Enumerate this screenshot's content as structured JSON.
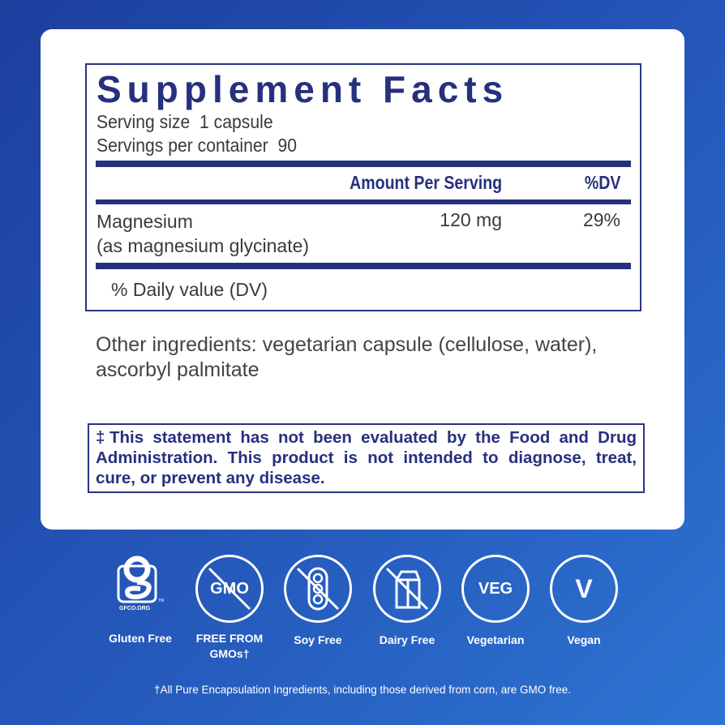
{
  "facts": {
    "title": "Supplement Facts",
    "serving_size": "Serving size  1 capsule",
    "servings_per_container": "Servings per container  90",
    "col_amount": "Amount Per Serving",
    "col_dv": "%DV",
    "nutrient": {
      "name": "Magnesium",
      "source": "(as magnesium glycinate)",
      "amount": "120 mg",
      "dv": "29%"
    },
    "dv_note": "% Daily value (DV)"
  },
  "other_ingredients": "Other ingredients: vegetarian capsule (cellulose, water), ascorbyl palmitate",
  "disclaimer": "‡This statement has not been evaluated by the Food and Drug Administration. This product is not intended to diagnose, treat, cure, or prevent any disease.",
  "badges": [
    {
      "label": "Gluten Free",
      "icon": "gfco-logo",
      "logo_text": "GFCO.ORG"
    },
    {
      "label": "FREE FROM GMOs†",
      "icon": "no-gmo",
      "icon_text": "GMO"
    },
    {
      "label": "Soy Free",
      "icon": "no-soy"
    },
    {
      "label": "Dairy Free",
      "icon": "no-dairy"
    },
    {
      "label": "Vegetarian",
      "icon": "veg",
      "icon_text": "VEG"
    },
    {
      "label": "Vegan",
      "icon": "vegan",
      "icon_text": "V"
    }
  ],
  "footnote": "†All Pure Encapsulation Ingredients, including those derived from corn, are GMO free.",
  "colors": {
    "navy": "#27307e",
    "background": "#2456b8"
  }
}
